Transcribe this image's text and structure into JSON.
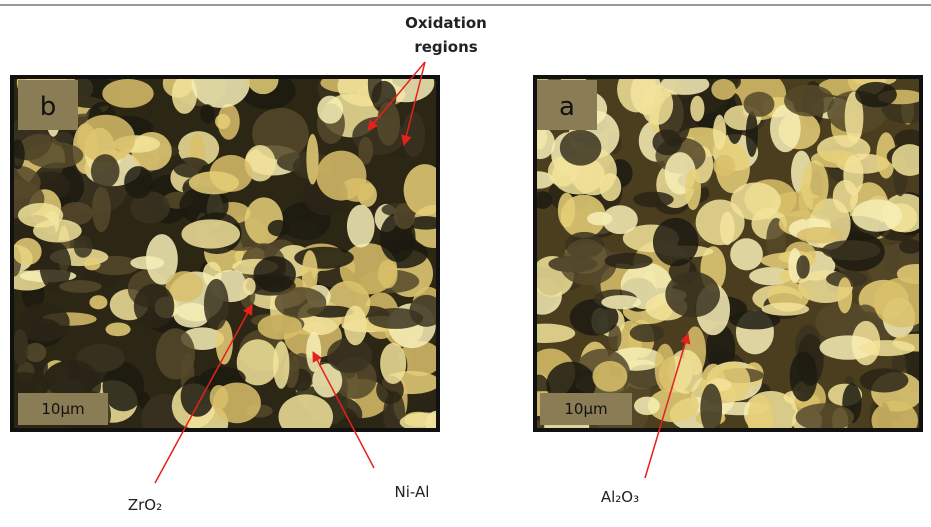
{
  "figure": {
    "annotations": {
      "oxidation": "Oxidation regions",
      "zro2": "ZrO₂",
      "nial": "Ni-Al",
      "al2o3": "Al₂O₃"
    },
    "panels": [
      {
        "letter": "b",
        "scale_bar": "10µm"
      },
      {
        "letter": "a",
        "scale_bar": "10µm"
      }
    ]
  }
}
